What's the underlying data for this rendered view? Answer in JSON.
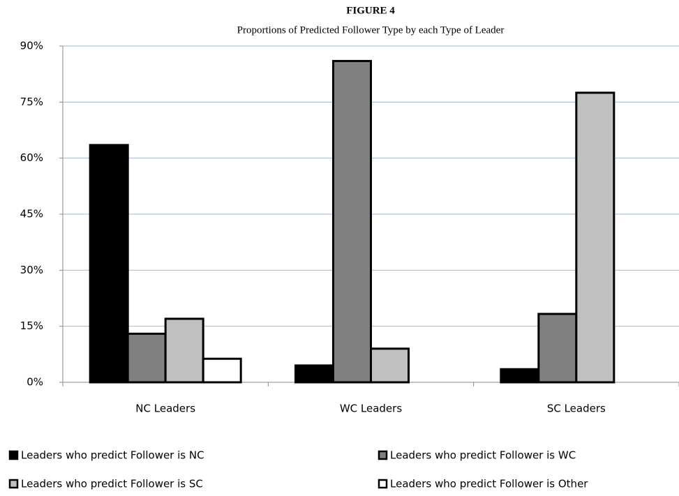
{
  "chart_data": {
    "type": "bar",
    "title": "FIGURE 4",
    "subtitle": "Proportions of Predicted Follower Type by each Type of Leader",
    "categories": [
      "NC Leaders",
      "WC Leaders",
      "SC  Leaders"
    ],
    "series": [
      {
        "name": "Leaders who predict Follower is NC",
        "color": "#000000",
        "values": [
          63.5,
          4.5,
          3.5
        ]
      },
      {
        "name": "Leaders who predict Follower is WC",
        "color": "#808080",
        "values": [
          13,
          86,
          18.3
        ]
      },
      {
        "name": "Leaders who predict Follower is SC",
        "color": "#c0c0c0",
        "values": [
          17,
          9,
          77.5
        ]
      },
      {
        "name": "Leaders who predict Follower is Other",
        "color": "#ffffff",
        "values": [
          6.3,
          null,
          null
        ]
      }
    ],
    "ylim": [
      0,
      90
    ],
    "yticks": [
      {
        "value": 0,
        "label": "0%"
      },
      {
        "value": 15,
        "label": "15%"
      },
      {
        "value": 30,
        "label": "30%"
      },
      {
        "value": 45,
        "label": "45%"
      },
      {
        "value": 60,
        "label": "60%"
      },
      {
        "value": 75,
        "label": "75%"
      },
      {
        "value": 90,
        "label": "90%"
      }
    ],
    "grid": true,
    "legend": "bottom"
  }
}
